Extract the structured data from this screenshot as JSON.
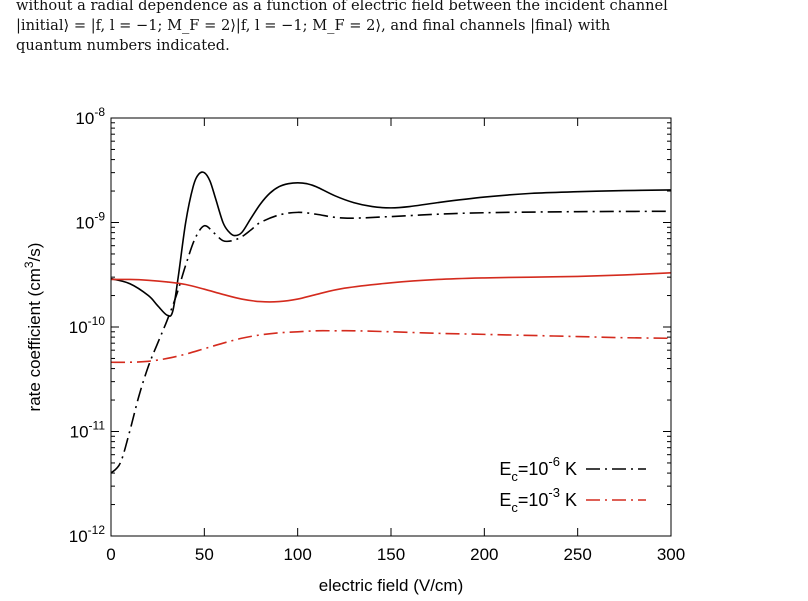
{
  "caption": {
    "lines": [
      "without a radial dependence as a function of electric field between the incident channel",
      "|initial⟩ = |f, l = −1; M_F = 2⟩|f, l = −1; M_F = 2⟩, and final channels |final⟩ with",
      "quantum numbers indicated."
    ]
  },
  "chart_data": {
    "type": "line",
    "title": "",
    "xlabel": "electric field (V/cm)",
    "ylabel": "rate coefficient (cm³/s)",
    "xlim": [
      0,
      300
    ],
    "ylim": [
      1e-12,
      1e-08
    ],
    "yscale": "log",
    "xticks": [
      0,
      50,
      100,
      150,
      200,
      250,
      300
    ],
    "yticks": [
      {
        "value": 1e-12,
        "base": "10",
        "exp": "-12"
      },
      {
        "value": 1e-11,
        "base": "10",
        "exp": "-11"
      },
      {
        "value": 1e-10,
        "base": "10",
        "exp": "-10"
      },
      {
        "value": 1e-09,
        "base": "10",
        "exp": "-9"
      },
      {
        "value": 1e-08,
        "base": "10",
        "exp": "-8"
      }
    ],
    "legend_position": "bottom-right",
    "legend": [
      {
        "text_main": "E",
        "sub": "c",
        "mid": "=10",
        "sup": "-6",
        "tail": " K",
        "color": "#000000",
        "style": "dashdot"
      },
      {
        "text_main": "E",
        "sub": "c",
        "mid": "=10",
        "sup": "-3",
        "tail": " K",
        "color": "#d42b1e",
        "style": "dashdot"
      }
    ],
    "series": [
      {
        "color": "#000000",
        "style": "solid",
        "x": [
          0,
          10,
          20,
          25,
          30,
          33,
          36,
          40,
          44,
          47,
          50,
          53,
          56,
          60,
          63,
          66,
          70,
          75,
          80,
          85,
          90,
          95,
          100,
          105,
          110,
          120,
          130,
          140,
          150,
          160,
          175,
          200,
          225,
          250,
          275,
          300
        ],
        "y": [
          2.9e-10,
          2.6e-10,
          2e-10,
          1.6e-10,
          1.3e-10,
          1.4e-10,
          3e-10,
          1e-09,
          2.2e-09,
          2.9e-09,
          3e-09,
          2.5e-09,
          1.7e-09,
          1e-09,
          8.2e-10,
          7.5e-10,
          8e-10,
          1.1e-09,
          1.5e-09,
          1.9e-09,
          2.2e-09,
          2.35e-09,
          2.4e-09,
          2.35e-09,
          2.2e-09,
          1.8e-09,
          1.55e-09,
          1.42e-09,
          1.38e-09,
          1.42e-09,
          1.55e-09,
          1.75e-09,
          1.9e-09,
          1.97e-09,
          2.02e-09,
          2.05e-09
        ]
      },
      {
        "color": "#000000",
        "style": "dashdot",
        "x": [
          0,
          5,
          10,
          15,
          20,
          25,
          30,
          35,
          40,
          45,
          50,
          55,
          60,
          65,
          70,
          75,
          80,
          90,
          100,
          110,
          120,
          130,
          150,
          175,
          200,
          250,
          300
        ],
        "y": [
          4e-12,
          5e-12,
          1e-11,
          2.2e-11,
          4.2e-11,
          7e-11,
          1.15e-10,
          2e-10,
          3.9e-10,
          7e-10,
          9.3e-10,
          8e-10,
          6.7e-10,
          6.7e-10,
          7.3e-10,
          8.5e-10,
          1e-09,
          1.18e-09,
          1.25e-09,
          1.2e-09,
          1.12e-09,
          1.1e-09,
          1.14e-09,
          1.2e-09,
          1.24e-09,
          1.27e-09,
          1.28e-09
        ]
      },
      {
        "color": "#d42b1e",
        "style": "solid",
        "x": [
          0,
          10,
          20,
          30,
          40,
          50,
          60,
          70,
          80,
          90,
          100,
          110,
          125,
          150,
          175,
          200,
          225,
          250,
          275,
          300
        ],
        "y": [
          2.85e-10,
          2.85e-10,
          2.8e-10,
          2.7e-10,
          2.55e-10,
          2.3e-10,
          2.05e-10,
          1.85e-10,
          1.75e-10,
          1.75e-10,
          1.85e-10,
          2.05e-10,
          2.35e-10,
          2.65e-10,
          2.85e-10,
          2.95e-10,
          3e-10,
          3.05e-10,
          3.15e-10,
          3.3e-10
        ]
      },
      {
        "color": "#d42b1e",
        "style": "dashdot",
        "x": [
          0,
          10,
          20,
          30,
          40,
          50,
          60,
          70,
          80,
          90,
          100,
          110,
          120,
          130,
          150,
          175,
          200,
          225,
          250,
          275,
          300
        ],
        "y": [
          4.6e-11,
          4.6e-11,
          4.7e-11,
          5e-11,
          5.5e-11,
          6.2e-11,
          7e-11,
          7.8e-11,
          8.4e-11,
          8.8e-11,
          9e-11,
          9.2e-11,
          9.2e-11,
          9.2e-11,
          9e-11,
          8.7e-11,
          8.5e-11,
          8.3e-11,
          8.1e-11,
          7.9e-11,
          7.8e-11
        ]
      }
    ]
  }
}
